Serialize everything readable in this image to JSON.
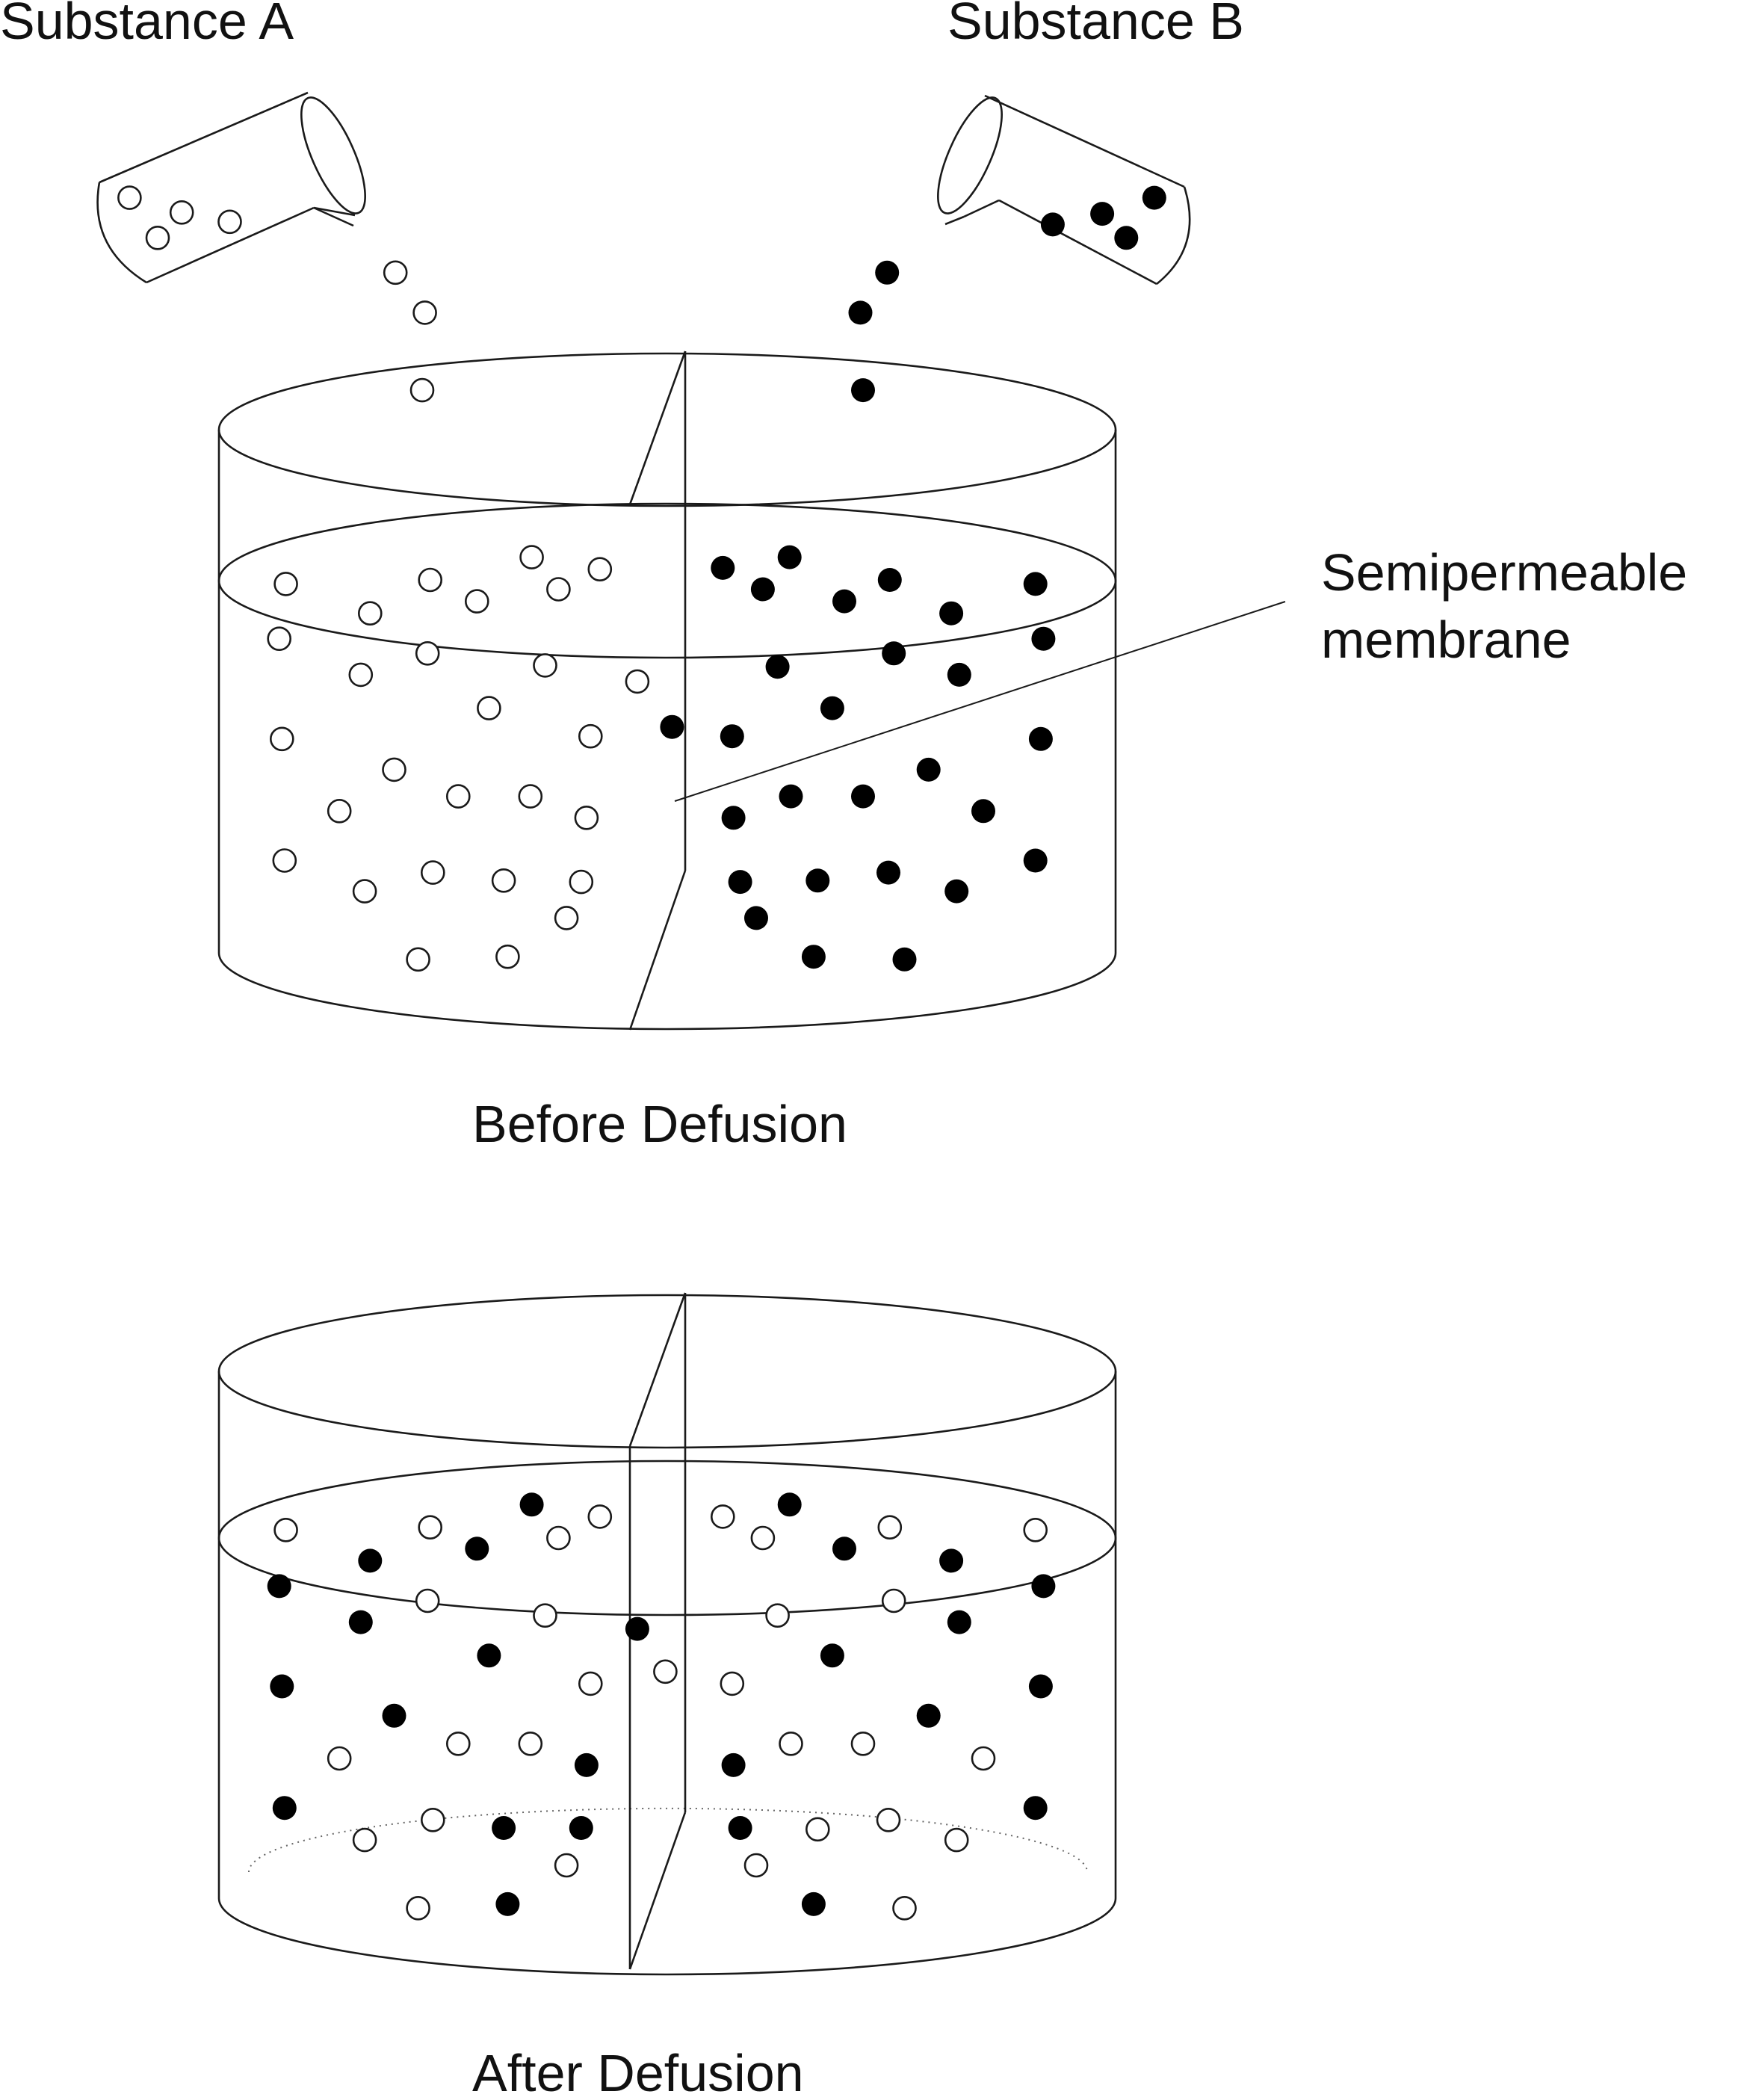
{
  "labels": {
    "substance_a": "Substance A",
    "substance_b": "Substance B",
    "membrane": [
      "Semipermeable",
      "membrane"
    ],
    "before": "Before Defusion",
    "after": "After Defusion"
  },
  "colors": {
    "stroke": "#1a1a1a",
    "particle_b_fill": "#000000",
    "particle_a_fill": "#ffffff",
    "background": "#ffffff"
  }
}
